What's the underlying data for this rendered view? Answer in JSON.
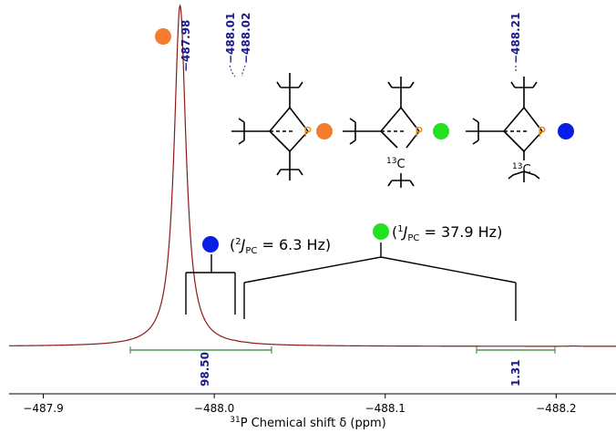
{
  "colors": {
    "spectrum": "#8b1a1a",
    "orange": "#f47c30",
    "green": "#22e022",
    "blue": "#0a1ee6",
    "peak_label": "#1a1a8c",
    "integral": "#2e7d32",
    "p_atom": "#e8900c"
  },
  "chart_data": {
    "type": "line",
    "title": "",
    "xlabel_nucleus_sup": "31",
    "xlabel": "P Chemical shift δ (ppm)",
    "ylabel": "",
    "xlim": [
      -487.88,
      -488.235
    ],
    "x_reversed": true,
    "ticks": [
      -487.9,
      -488.0,
      -488.1,
      -488.2
    ],
    "tick_labels": [
      "−487.9",
      "−488.0",
      "−488.1",
      "−488.2"
    ],
    "peak_labels": [
      "−487.98",
      "−488.01",
      "−488.02",
      "−488.21"
    ],
    "peaks": [
      {
        "shift": -487.98,
        "relative_height": 1.0,
        "annotation": "orange"
      },
      {
        "shift": -488.012,
        "relative_height": 0.012,
        "annotation": "blue"
      },
      {
        "shift": -488.019,
        "relative_height": 0.01,
        "annotation": "blue"
      },
      {
        "shift": -488.21,
        "relative_height": 0.012,
        "annotation": "green"
      }
    ],
    "couplings": [
      {
        "marker": "blue",
        "sup": "2",
        "label_pre": "(",
        "J": "J",
        "sub": "PC",
        "value": " = 6.3 Hz)"
      },
      {
        "marker": "green",
        "sup": "1",
        "label_pre": "(",
        "J": "J",
        "sub": "PC",
        "value": " = 37.9 Hz)"
      }
    ],
    "integrals": [
      {
        "from": -487.905,
        "to": -488.085,
        "value": "98.50"
      },
      {
        "from": -488.125,
        "to": -488.175,
        "value": "1.31"
      }
    ]
  },
  "structures": [
    {
      "p_label": "P",
      "marker": "orange",
      "c13_label": ""
    },
    {
      "p_label": "P",
      "marker": "green",
      "c13_label": "13C"
    },
    {
      "p_label": "P",
      "marker": "blue",
      "c13_label": "13C"
    }
  ]
}
